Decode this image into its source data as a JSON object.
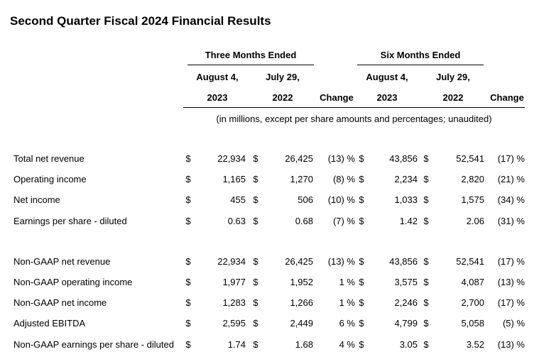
{
  "title": "Second Quarter Fiscal 2024 Financial Results",
  "header": {
    "three_months": "Three Months Ended",
    "six_months": "Six Months Ended",
    "aug4": "August 4,",
    "jul29": "July 29,",
    "y2023": "2023",
    "y2022": "2022",
    "change": "Change",
    "note": "(in millions, except per share amounts and percentages; unaudited)"
  },
  "rows": [
    {
      "label": "Total net revenue",
      "d1": "$",
      "v1": "22,934",
      "d2": "$",
      "v2": "26,425",
      "ch1": "(13) %",
      "d3": "$",
      "v3": "43,856",
      "d4": "$",
      "v4": "52,541",
      "ch2": "(17) %"
    },
    {
      "label": "Operating income",
      "d1": "$",
      "v1": "1,165",
      "d2": "$",
      "v2": "1,270",
      "ch1": "(8) %",
      "d3": "$",
      "v3": "2,234",
      "d4": "$",
      "v4": "2,820",
      "ch2": "(21) %"
    },
    {
      "label": "Net income",
      "d1": "$",
      "v1": "455",
      "d2": "$",
      "v2": "506",
      "ch1": "(10) %",
      "d3": "$",
      "v3": "1,033",
      "d4": "$",
      "v4": "1,575",
      "ch2": "(34) %"
    },
    {
      "label": "Earnings per share - diluted",
      "d1": "$",
      "v1": "0.63",
      "d2": "$",
      "v2": "0.68",
      "ch1": "(7) %",
      "d3": "$",
      "v3": "1.42",
      "d4": "$",
      "v4": "2.06",
      "ch2": "(31) %"
    },
    {
      "label": "Non-GAAP net revenue",
      "d1": "$",
      "v1": "22,934",
      "d2": "$",
      "v2": "26,425",
      "ch1": "(13) %",
      "d3": "$",
      "v3": "43,856",
      "d4": "$",
      "v4": "52,541",
      "ch2": "(17) %"
    },
    {
      "label": "Non-GAAP operating income",
      "d1": "$",
      "v1": "1,977",
      "d2": "$",
      "v2": "1,952",
      "ch1": "1 %",
      "d3": "$",
      "v3": "3,575",
      "d4": "$",
      "v4": "4,087",
      "ch2": "(13) %"
    },
    {
      "label": "Non-GAAP net income",
      "d1": "$",
      "v1": "1,283",
      "d2": "$",
      "v2": "1,266",
      "ch1": "1 %",
      "d3": "$",
      "v3": "2,246",
      "d4": "$",
      "v4": "2,700",
      "ch2": "(17) %"
    },
    {
      "label": "Adjusted EBITDA",
      "d1": "$",
      "v1": "2,595",
      "d2": "$",
      "v2": "2,449",
      "ch1": "6 %",
      "d3": "$",
      "v3": "4,799",
      "d4": "$",
      "v4": "5,058",
      "ch2": "(5) %"
    },
    {
      "label": "Non-GAAP earnings per share - diluted",
      "d1": "$",
      "v1": "1.74",
      "d2": "$",
      "v2": "1.68",
      "ch1": "4 %",
      "d3": "$",
      "v3": "3.05",
      "d4": "$",
      "v4": "3.52",
      "ch2": "(13) %"
    }
  ]
}
